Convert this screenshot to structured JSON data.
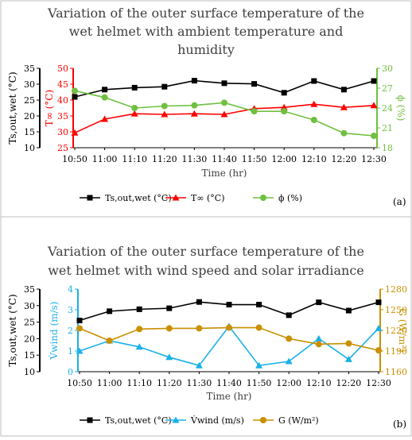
{
  "chart_data": [
    {
      "type": "line",
      "panel_label": "(a)",
      "title_lines": [
        "Variation of the outer surface temperature of the",
        "wet helmet with ambient temperature and",
        "humidity"
      ],
      "xlabel": "Time (hr)",
      "categories": [
        "10:50",
        "11:00",
        "11:10",
        "11:20",
        "11:30",
        "11:40",
        "11:50",
        "12:00",
        "12:10",
        "12:20",
        "12:30"
      ],
      "axes": [
        {
          "label": "Ts,out,wet (°C)",
          "ylim": [
            10,
            35
          ],
          "ticks": [
            10,
            15,
            20,
            25,
            30,
            35
          ],
          "color": "#000000"
        },
        {
          "label": "T∞ (°C)",
          "ylim": [
            25,
            50
          ],
          "ticks": [
            25,
            30,
            35,
            40,
            45,
            50
          ],
          "color": "#ff0000"
        },
        {
          "label": "ϕ (%)",
          "ylim": [
            18,
            30
          ],
          "ticks": [
            18,
            21,
            24,
            27,
            30
          ],
          "color": "#70c040"
        }
      ],
      "series": [
        {
          "name": "Ts,out,wet (°C)",
          "axis": 0,
          "color": "#000000",
          "marker": "square",
          "values": [
            26.0,
            28.3,
            28.9,
            29.2,
            31.1,
            30.3,
            30.1,
            27.3,
            31.0,
            28.3,
            31.0
          ]
        },
        {
          "name": "T∞ (°C)",
          "axis": 1,
          "color": "#ff0000",
          "marker": "triangle",
          "values": [
            29.7,
            34.0,
            35.7,
            35.5,
            35.7,
            35.5,
            37.3,
            37.7,
            38.7,
            37.7,
            38.3
          ]
        },
        {
          "name": "ϕ (%)",
          "axis": 2,
          "color": "#70c040",
          "marker": "circle",
          "values": [
            26.6,
            25.6,
            24.0,
            24.3,
            24.4,
            24.8,
            23.5,
            23.5,
            22.2,
            20.2,
            19.8
          ]
        }
      ]
    },
    {
      "type": "line",
      "panel_label": "(b)",
      "title_lines": [
        "Variation of the outer surface temperature of the",
        "wet helmet with wind speed and solar irradiance"
      ],
      "xlabel": "Time (hr)",
      "categories": [
        "10:50",
        "11:00",
        "11:10",
        "11:20",
        "11:30",
        "11:40",
        "11:50",
        "12:00",
        "12:10",
        "12:20",
        "12:30"
      ],
      "axes": [
        {
          "label": "Ts,out,wet (°C)",
          "ylim": [
            10,
            35
          ],
          "ticks": [
            10,
            15,
            20,
            25,
            30,
            35
          ],
          "color": "#000000"
        },
        {
          "label": "V̇wind (m/s)",
          "ylim": [
            0,
            4
          ],
          "ticks": [
            0,
            1,
            2,
            3,
            4
          ],
          "color": "#1ab0e8"
        },
        {
          "label": "G (W/m²)",
          "ylim": [
            1160,
            1280
          ],
          "ticks": [
            1160,
            1190,
            1220,
            1250,
            1280
          ],
          "color": "#c89000"
        }
      ],
      "series": [
        {
          "name": "Ts,out,wet (°C)",
          "axis": 0,
          "color": "#000000",
          "marker": "square",
          "values": [
            25.5,
            28.3,
            28.9,
            29.2,
            31.1,
            30.3,
            30.3,
            27.1,
            31.0,
            28.5,
            31.0
          ]
        },
        {
          "name": "V̇wind (m/s)",
          "axis": 1,
          "color": "#1ab0e8",
          "marker": "triangle",
          "values": [
            1.0,
            1.5,
            1.2,
            0.7,
            0.3,
            2.2,
            0.3,
            0.5,
            1.6,
            0.6,
            2.1
          ]
        },
        {
          "name": "G (W/m²)",
          "axis": 2,
          "color": "#c89000",
          "marker": "circle",
          "values": [
            1223,
            1205,
            1222,
            1223,
            1223,
            1224,
            1224,
            1208,
            1200,
            1201,
            1191
          ]
        }
      ]
    }
  ]
}
